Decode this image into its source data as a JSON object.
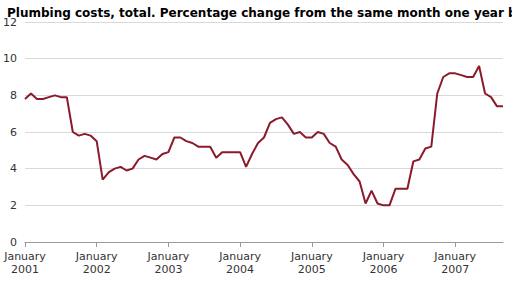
{
  "chart_data": {
    "type": "line",
    "title": "Plumbing costs, total. Percentage change from the same month one year before",
    "categories": [
      "January\n2001",
      null,
      null,
      null,
      null,
      null,
      null,
      null,
      null,
      null,
      null,
      null,
      "January\n2002",
      null,
      null,
      null,
      null,
      null,
      null,
      null,
      null,
      null,
      null,
      null,
      "January\n2003",
      null,
      null,
      null,
      null,
      null,
      null,
      null,
      null,
      null,
      null,
      null,
      "January\n2004",
      null,
      null,
      null,
      null,
      null,
      null,
      null,
      null,
      null,
      null,
      null,
      "January\n2005",
      null,
      null,
      null,
      null,
      null,
      null,
      null,
      null,
      null,
      null,
      null,
      "January\n2006",
      null,
      null,
      null,
      null,
      null,
      null,
      null,
      null,
      null,
      null,
      null,
      "January\n2007",
      null,
      null,
      null,
      null,
      null,
      null,
      null,
      null
    ],
    "values": [
      7.8,
      8.1,
      7.8,
      7.8,
      7.9,
      8.0,
      7.9,
      7.9,
      6.0,
      5.8,
      5.9,
      5.8,
      5.5,
      3.4,
      3.8,
      4.0,
      4.1,
      3.9,
      4.0,
      4.5,
      4.7,
      4.6,
      4.5,
      4.8,
      4.9,
      5.7,
      5.7,
      5.5,
      5.4,
      5.2,
      5.2,
      5.2,
      4.6,
      4.9,
      4.9,
      4.9,
      4.9,
      4.1,
      4.8,
      5.4,
      5.7,
      6.5,
      6.7,
      6.8,
      6.4,
      5.9,
      6.0,
      5.7,
      5.7,
      6.0,
      5.9,
      5.4,
      5.2,
      4.5,
      4.2,
      3.7,
      3.3,
      2.1,
      2.8,
      2.1,
      2.0,
      2.0,
      2.9,
      2.9,
      2.9,
      4.4,
      4.5,
      5.1,
      5.2,
      8.1,
      9.0,
      9.2,
      9.2,
      9.1,
      9.0,
      9.0,
      9.6,
      8.1,
      7.9,
      7.4,
      7.4
    ],
    "color": "#8b1a2b",
    "ylim": [
      0,
      12
    ],
    "yticks": [
      0,
      2,
      4,
      6,
      8,
      10,
      12
    ],
    "grid": true
  }
}
